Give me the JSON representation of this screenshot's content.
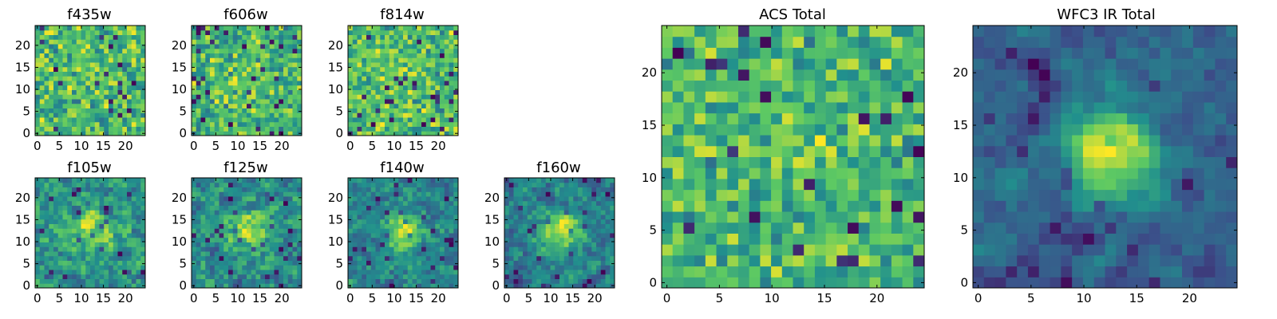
{
  "figure": {
    "colormap": "viridis",
    "colormap_stops": [
      "#440154",
      "#3b528b",
      "#21908d",
      "#5dc963",
      "#fde725"
    ]
  },
  "chart_data": [
    {
      "type": "heatmap",
      "title": "f435w",
      "xticks": [
        "0",
        "5",
        "10",
        "15",
        "20"
      ],
      "yticks": [
        "0",
        "5",
        "10",
        "15",
        "20"
      ],
      "xlim": [
        0,
        24
      ],
      "ylim": [
        0,
        24
      ],
      "grid_size": 24,
      "seed": 11,
      "smoothing": 0,
      "central_bump": 0.0
    },
    {
      "type": "heatmap",
      "title": "f606w",
      "xticks": [
        "0",
        "5",
        "10",
        "15",
        "20"
      ],
      "yticks": [
        "0",
        "5",
        "10",
        "15",
        "20"
      ],
      "xlim": [
        0,
        24
      ],
      "ylim": [
        0,
        24
      ],
      "grid_size": 24,
      "seed": 23,
      "smoothing": 0,
      "central_bump": 0.05
    },
    {
      "type": "heatmap",
      "title": "f814w",
      "xticks": [
        "0",
        "5",
        "10",
        "15",
        "20"
      ],
      "yticks": [
        "0",
        "5",
        "10",
        "15",
        "20"
      ],
      "xlim": [
        0,
        24
      ],
      "ylim": [
        0,
        24
      ],
      "grid_size": 24,
      "seed": 37,
      "smoothing": 0,
      "central_bump": 0.05
    },
    {
      "type": "heatmap",
      "title": "f105w",
      "xticks": [
        "0",
        "5",
        "10",
        "15",
        "20"
      ],
      "yticks": [
        "0",
        "5",
        "10",
        "15",
        "20"
      ],
      "xlim": [
        0,
        24
      ],
      "ylim": [
        0,
        24
      ],
      "grid_size": 24,
      "seed": 41,
      "smoothing": 1,
      "central_bump": 0.25
    },
    {
      "type": "heatmap",
      "title": "f125w",
      "xticks": [
        "0",
        "5",
        "10",
        "15",
        "20"
      ],
      "yticks": [
        "0",
        "5",
        "10",
        "15",
        "20"
      ],
      "xlim": [
        0,
        24
      ],
      "ylim": [
        0,
        24
      ],
      "grid_size": 24,
      "seed": 53,
      "smoothing": 1,
      "central_bump": 0.3
    },
    {
      "type": "heatmap",
      "title": "f140w",
      "xticks": [
        "0",
        "5",
        "10",
        "15",
        "20"
      ],
      "yticks": [
        "0",
        "5",
        "10",
        "15",
        "20"
      ],
      "xlim": [
        0,
        24
      ],
      "ylim": [
        0,
        24
      ],
      "grid_size": 24,
      "seed": 67,
      "smoothing": 1,
      "central_bump": 0.35
    },
    {
      "type": "heatmap",
      "title": "f160w",
      "xticks": [
        "0",
        "5",
        "10",
        "15",
        "20"
      ],
      "yticks": [
        "0",
        "5",
        "10",
        "15",
        "20"
      ],
      "xlim": [
        0,
        24
      ],
      "ylim": [
        0,
        24
      ],
      "grid_size": 24,
      "seed": 79,
      "smoothing": 1,
      "central_bump": 0.4
    },
    {
      "type": "heatmap",
      "title": "ACS Total",
      "xticks": [
        "0",
        "5",
        "10",
        "15",
        "20"
      ],
      "yticks": [
        "0",
        "5",
        "10",
        "15",
        "20"
      ],
      "xlim": [
        0,
        24
      ],
      "ylim": [
        0,
        24
      ],
      "grid_size": 24,
      "seed": 97,
      "smoothing": 0,
      "central_bump": 0.1
    },
    {
      "type": "heatmap",
      "title": "WFC3 IR Total",
      "xticks": [
        "0",
        "5",
        "10",
        "15",
        "20"
      ],
      "yticks": [
        "0",
        "5",
        "10",
        "15",
        "20"
      ],
      "xlim": [
        0,
        24
      ],
      "ylim": [
        0,
        24
      ],
      "grid_size": 24,
      "seed": 131,
      "smoothing": 2,
      "central_bump": 0.5
    }
  ]
}
